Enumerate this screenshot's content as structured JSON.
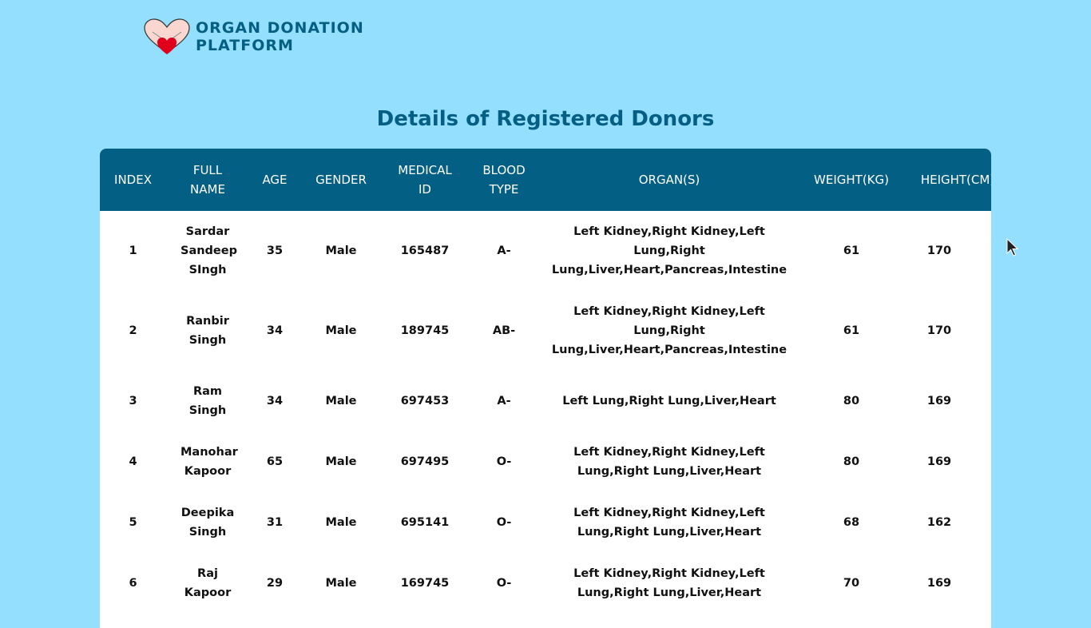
{
  "brand": {
    "line1": "ORGAN DONATION",
    "line2": "PLATFORM",
    "colors": {
      "primary": "#045f84",
      "background": "#94dffd",
      "heart": "#e0001b"
    }
  },
  "page_title": "Details of Registered Donors",
  "table": {
    "headers": [
      "INDEX",
      "FULL NAME",
      "AGE",
      "GENDER",
      "MEDICAL ID",
      "BLOOD TYPE",
      "ORGAN(S)",
      "WEIGHT(KG)",
      "HEIGHT(CM)"
    ],
    "rows": [
      [
        "1",
        "Sardar Sandeep SIngh",
        "35",
        "Male",
        "165487",
        "A-",
        "Left Kidney,Right Kidney,Left Lung,Right Lung,Liver,Heart,Pancreas,Intestine",
        "61",
        "170"
      ],
      [
        "2",
        "Ranbir Singh",
        "34",
        "Male",
        "189745",
        "AB-",
        "Left Kidney,Right Kidney,Left Lung,Right Lung,Liver,Heart,Pancreas,Intestine",
        "61",
        "170"
      ],
      [
        "3",
        "Ram Singh",
        "34",
        "Male",
        "697453",
        "A-",
        "Left Lung,Right Lung,Liver,Heart",
        "80",
        "169"
      ],
      [
        "4",
        "Manohar Kapoor",
        "65",
        "Male",
        "697495",
        "O-",
        "Left Kidney,Right Kidney,Left Lung,Right Lung,Liver,Heart",
        "80",
        "169"
      ],
      [
        "5",
        "Deepika Singh",
        "31",
        "Male",
        "695141",
        "O-",
        "Left Kidney,Right Kidney,Left Lung,Right Lung,Liver,Heart",
        "68",
        "162"
      ],
      [
        "6",
        "Raj Kapoor",
        "29",
        "Male",
        "169745",
        "O-",
        "Left Kidney,Right Kidney,Left Lung,Right Lung,Liver,Heart",
        "70",
        "169"
      ]
    ]
  }
}
